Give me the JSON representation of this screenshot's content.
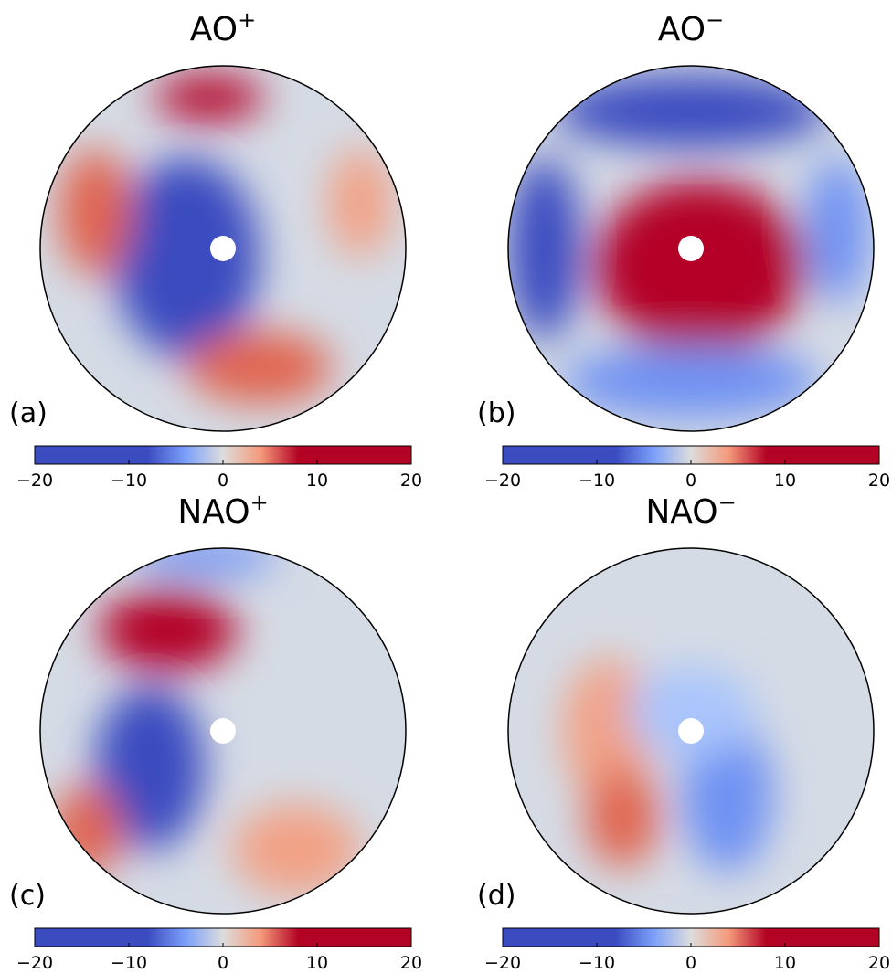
{
  "panels": [
    {
      "title": "AO",
      "superscript": "+",
      "label": "(a)",
      "colorbar": {
        "clim": [
          -20,
          20
        ],
        "ticks": [
          {
            "value": -20,
            "label": "−20"
          },
          {
            "value": -10,
            "label": "−10"
          },
          0,
          10,
          20
        ]
      }
    },
    {
      "title": "AO",
      "superscript": "−",
      "label": "(b)",
      "colorbar": {
        "clim": [
          -20,
          20
        ],
        "ticks": [
          {
            "value": -20,
            "label": "−20"
          },
          {
            "value": -10,
            "label": "−10"
          },
          0,
          10,
          20
        ]
      }
    },
    {
      "title": "NAO",
      "superscript": "+",
      "label": "(c)",
      "colorbar": {
        "clim": [
          -20,
          20
        ],
        "ticks": [
          {
            "value": -20,
            "label": "−20"
          },
          {
            "value": -10,
            "label": "−10"
          },
          0,
          10,
          20
        ]
      }
    },
    {
      "title": "NAO",
      "superscript": "−",
      "label": "(d)",
      "colorbar": {
        "clim": [
          -20,
          20
        ],
        "ticks": [
          {
            "value": -20,
            "label": "−20"
          },
          {
            "value": -10,
            "label": "−10"
          },
          0,
          10,
          20
        ]
      }
    }
  ]
}
